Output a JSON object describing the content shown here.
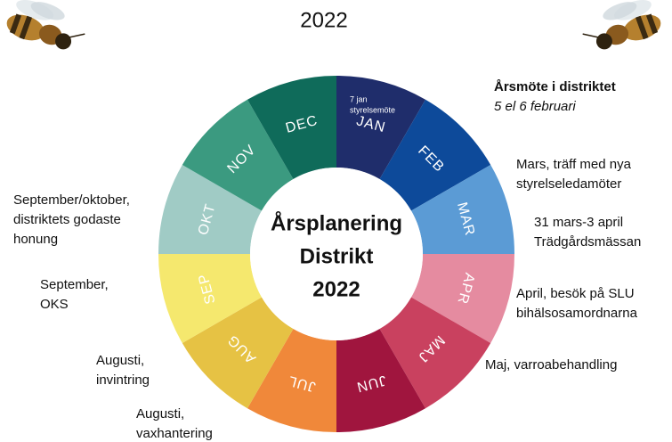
{
  "header": {
    "title": "2022"
  },
  "wheel": {
    "center": [
      "Årsplanering",
      "Distrikt",
      "2022"
    ],
    "months": [
      {
        "label": "JAN",
        "note": [
          "7 jan",
          "styrelsemöte"
        ]
      },
      {
        "label": "FEB"
      },
      {
        "label": "MAR"
      },
      {
        "label": "APR"
      },
      {
        "label": "MAJ"
      },
      {
        "label": "JUN"
      },
      {
        "label": "JUL"
      },
      {
        "label": "AUG"
      },
      {
        "label": "SEP"
      },
      {
        "label": "OKT"
      },
      {
        "label": "NOV"
      },
      {
        "label": "DEC"
      }
    ]
  },
  "annotations": [
    {
      "lines": [
        "Årsmöte i distriktet",
        "5 el 6 februari"
      ]
    },
    {
      "lines": [
        "Mars, träff med nya",
        "styrelseledamöter"
      ]
    },
    {
      "lines": [
        "31 mars-3 april",
        "Trädgårdsmässan"
      ]
    },
    {
      "lines": [
        "April, besök på SLU",
        "bihälsosamordnarna"
      ]
    },
    {
      "lines": [
        "Maj, varroabehandling"
      ]
    },
    {
      "lines": [
        "September/oktober,",
        "distriktets godaste",
        "honung"
      ]
    },
    {
      "lines": [
        "September,",
        "OKS"
      ]
    },
    {
      "lines": [
        "Augusti,",
        "invintring"
      ]
    },
    {
      "lines": [
        "Augusti,",
        "vaxhantering"
      ]
    }
  ]
}
